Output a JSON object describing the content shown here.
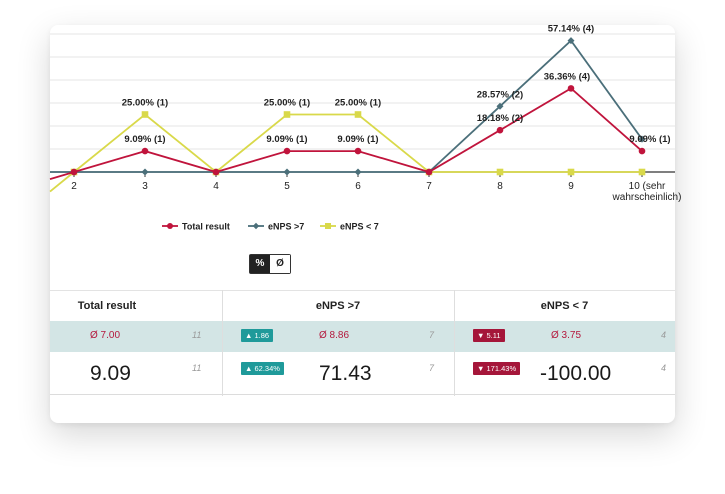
{
  "chart_data": {
    "type": "line",
    "x_labels": [
      "2",
      "3",
      "4",
      "5",
      "6",
      "7",
      "8",
      "9",
      "10 (sehr wahrscheinlich)"
    ],
    "series": [
      {
        "name": "Total result",
        "color": "#c0143c",
        "values": [
          0,
          9.09,
          0,
          9.09,
          9.09,
          0,
          18.18,
          36.36,
          9.09
        ],
        "labels": [
          "",
          "9.09% (1)",
          "",
          "9.09% (1)",
          "9.09% (1)",
          "",
          "18.18% (2)",
          "36.36% (4)",
          "9.09% (1)"
        ]
      },
      {
        "name": "eNPS >7",
        "color": "#4b6f7a",
        "values": [
          0,
          0,
          0,
          0,
          0,
          0,
          28.57,
          57.14,
          14.29
        ],
        "labels": [
          "",
          "",
          "",
          "",
          "",
          "",
          "28.57% (2)",
          "57.14% (4)",
          ""
        ]
      },
      {
        "name": "eNPS < 7",
        "color": "#d9d94a",
        "values": [
          0,
          25,
          0,
          25,
          25,
          0,
          0,
          0,
          0
        ],
        "labels": [
          "",
          "25.00% (1)",
          "",
          "25.00% (1)",
          "25.00% (1)",
          "",
          "",
          "",
          ""
        ]
      }
    ],
    "ylim": [
      0,
      60
    ],
    "grid": true,
    "legend": "bottom"
  },
  "toggle": {
    "percent": "%",
    "average": "Ø"
  },
  "table": {
    "headers": {
      "total": "Total result",
      "promoters": "eNPS >7",
      "detractors": "eNPS < 7"
    },
    "row1": {
      "total_avg": "Ø 7.00",
      "total_n": "11",
      "prom_badge": "▲ 1.86",
      "prom_avg": "Ø 8.86",
      "prom_n": "7",
      "detr_badge": "▼ 5.11",
      "detr_avg": "Ø 3.75",
      "detr_n": "4"
    },
    "row2": {
      "total_value": "9.09",
      "total_n": "11",
      "prom_badge": "▲ 62.34%",
      "prom_value": "71.43",
      "prom_n": "7",
      "detr_badge": "▼ 171.43%",
      "detr_value": "-100.00",
      "detr_n": "4"
    }
  }
}
